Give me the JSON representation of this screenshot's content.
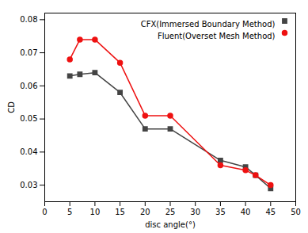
{
  "chart_data": {
    "type": "line",
    "x": [
      5,
      7,
      10,
      15,
      20,
      25,
      35,
      40,
      42,
      45
    ],
    "series": [
      {
        "name": "CFX(Immersed Boundary Method)",
        "color": "#444444",
        "marker": "square",
        "values": [
          0.063,
          0.0635,
          0.064,
          0.058,
          0.047,
          0.047,
          0.0375,
          0.0355,
          0.033,
          0.029
        ]
      },
      {
        "name": "Fluent(Overset Mesh Method)",
        "color": "#ee1111",
        "marker": "circle",
        "values": [
          0.068,
          0.074,
          0.074,
          0.067,
          0.051,
          0.051,
          0.036,
          0.0345,
          0.033,
          0.03
        ]
      }
    ],
    "xlabel": "disc angle(°)",
    "ylabel": "CD",
    "xlim": [
      0,
      50
    ],
    "ylim": [
      0.025,
      0.082
    ],
    "xticks": [
      0,
      5,
      10,
      15,
      20,
      25,
      30,
      35,
      40,
      45,
      50
    ],
    "yticks": [
      0.03,
      0.04,
      0.05,
      0.06,
      0.07,
      0.08
    ],
    "legend": "upper right",
    "grid": false
  }
}
